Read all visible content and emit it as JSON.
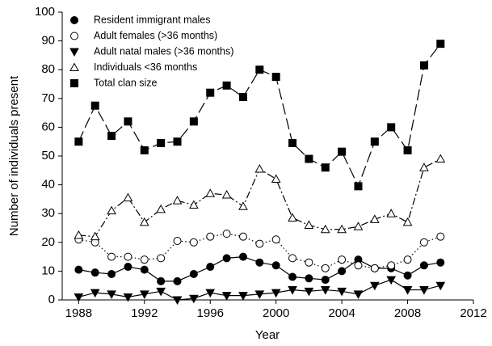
{
  "chart_data": {
    "type": "line",
    "x_label": "Year",
    "y_label": "Number of individuals present",
    "x": [
      1988,
      1989,
      1990,
      1991,
      1992,
      1993,
      1994,
      1995,
      1996,
      1997,
      1998,
      1999,
      2000,
      2001,
      2002,
      2003,
      2004,
      2005,
      2006,
      2007,
      2008,
      2009,
      2010
    ],
    "series": [
      {
        "name": "Resident immigrant males",
        "color": "#000000",
        "marker": "circle-filled",
        "dash": "solid",
        "values": [
          10.5,
          9.5,
          9,
          11.5,
          10.5,
          6.5,
          6.5,
          9,
          11.5,
          14.5,
          15,
          13,
          12,
          8,
          7.5,
          7,
          10,
          14,
          11,
          11,
          8.5,
          12,
          13
        ]
      },
      {
        "name": "Adult females (>36 months)",
        "color": "#000000",
        "marker": "circle-open",
        "dash": "dotted",
        "values": [
          21,
          20,
          15,
          15,
          14,
          14.5,
          20.5,
          20,
          22,
          23,
          22,
          19.5,
          21,
          14.5,
          13,
          11,
          14,
          12,
          11,
          12,
          14,
          20,
          22
        ]
      },
      {
        "name": "Adult natal males (>36 months)",
        "color": "#000000",
        "marker": "triangle-down-filled",
        "dash": "solid",
        "values": [
          1,
          2.5,
          2,
          1,
          2,
          3,
          0,
          0.5,
          2.5,
          1.5,
          1.5,
          2,
          2.5,
          3.5,
          3,
          3.5,
          3,
          2,
          5,
          7,
          3.5,
          3.5,
          5
        ]
      },
      {
        "name": "Individuals <36 months",
        "color": "#000000",
        "marker": "triangle-up-open",
        "dash": "dashdot",
        "values": [
          22.5,
          22,
          31,
          35.5,
          27,
          31.5,
          34.5,
          33,
          37,
          36.5,
          32.5,
          45.5,
          42,
          28.5,
          26,
          24.5,
          24.5,
          25.5,
          28,
          30,
          27,
          46,
          49
        ]
      },
      {
        "name": "Total clan size",
        "color": "#000000",
        "marker": "square-filled",
        "dash": "dashed",
        "values": [
          55,
          67.5,
          57,
          62,
          52,
          54.5,
          55,
          62,
          72,
          74.5,
          70.5,
          80,
          77.5,
          54.5,
          49,
          46,
          51.5,
          39.5,
          55,
          60,
          52,
          81.5,
          89
        ]
      }
    ],
    "xlim": [
      1987,
      2012
    ],
    "xticks": [
      1988,
      1992,
      1996,
      2000,
      2004,
      2008,
      2012
    ],
    "ylim": [
      0,
      100
    ],
    "yticks": [
      0,
      10,
      20,
      30,
      40,
      50,
      60,
      70,
      80,
      90,
      100
    ],
    "grid": false,
    "legend": "upper-left"
  }
}
